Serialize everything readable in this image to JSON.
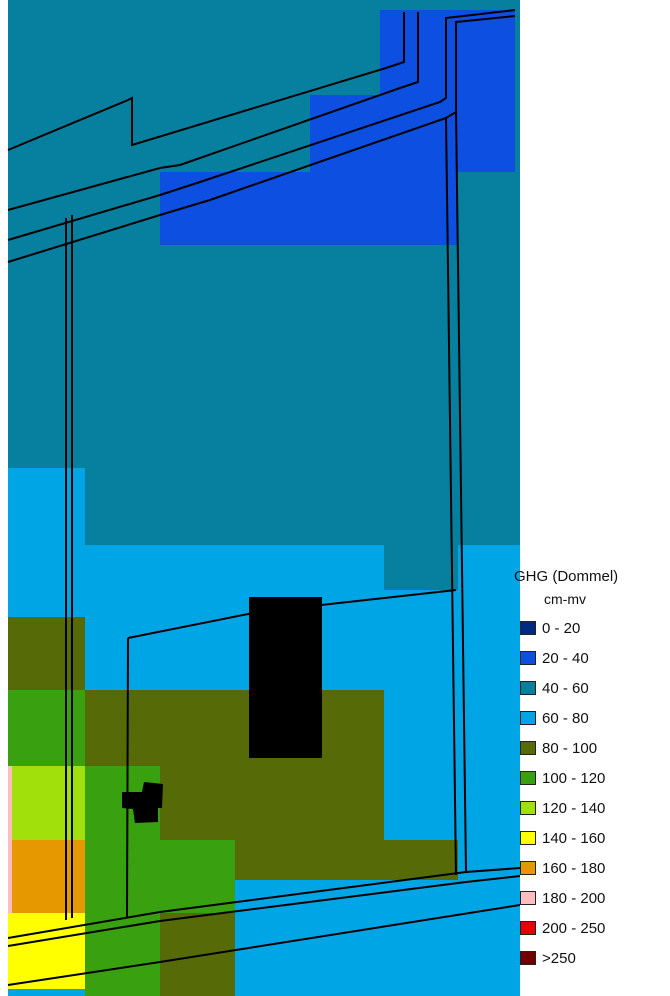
{
  "legend": {
    "title": "GHG (Dommel)",
    "unit": "cm-mv",
    "classes": [
      {
        "label": "0 - 20",
        "color": "#002a7f"
      },
      {
        "label": "20 - 40",
        "color": "#0d4fe0"
      },
      {
        "label": "40 - 60",
        "color": "#06809e"
      },
      {
        "label": "60 - 80",
        "color": "#00a5e6"
      },
      {
        "label": "80 - 100",
        "color": "#566b07"
      },
      {
        "label": "100 - 120",
        "color": "#39a00f"
      },
      {
        "label": "120 - 140",
        "color": "#a2e00c"
      },
      {
        "label": "140 - 160",
        "color": "#ffff00"
      },
      {
        "label": "160 - 180",
        "color": "#e69800"
      },
      {
        "label": "180 - 200",
        "color": "#ffbebe"
      },
      {
        "label": "200 - 250",
        "color": "#e60000"
      },
      {
        "label": ">250",
        "color": "#730000"
      }
    ]
  },
  "map": {
    "building_color": "#000000",
    "outline_color": "#000000"
  }
}
